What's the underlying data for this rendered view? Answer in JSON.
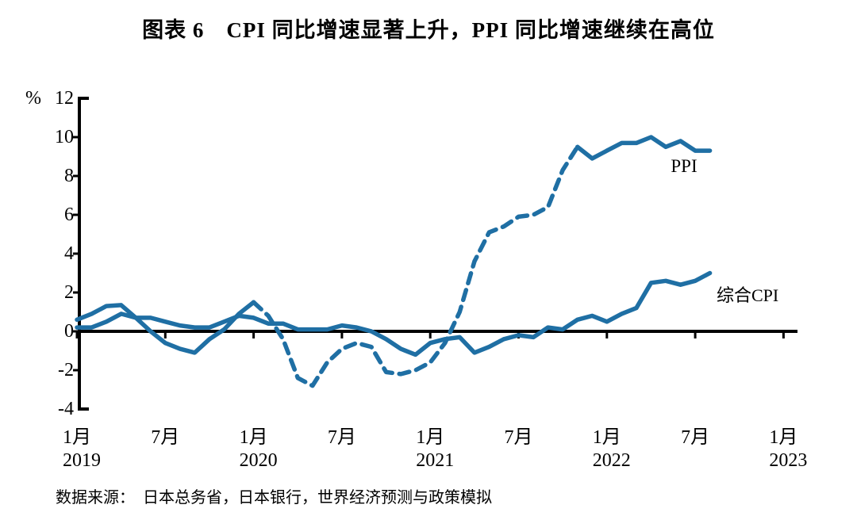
{
  "page": {
    "source": "数据来源：　日本总务省，日本银行，世界经济预测与政策模拟"
  },
  "chart_data": {
    "type": "line",
    "title": "图表 6　CPI 同比增速显著上升，PPI 同比增速继续在高位",
    "unit_label": "%",
    "ylim": [
      -4,
      12
    ],
    "yticks": [
      12,
      10,
      8,
      6,
      4,
      2,
      0,
      -2,
      -4
    ],
    "grid": false,
    "legend_position": "inline-labels",
    "x_monthly_from": "2019-01",
    "x_monthly_to": "2022-08",
    "x_ticks": [
      {
        "month": "1月",
        "year": "2019"
      },
      {
        "month": "7月"
      },
      {
        "month": "1月",
        "year": "2020"
      },
      {
        "month": "7月"
      },
      {
        "month": "1月",
        "year": "2021"
      },
      {
        "month": "7月"
      },
      {
        "month": "1月",
        "year": "2022"
      },
      {
        "month": "7月"
      },
      {
        "month": "1月",
        "year": "2023"
      }
    ],
    "line_color": "#1F6FA4",
    "series": [
      {
        "id": "ppi",
        "name": "PPI",
        "color": "#1F6FA4",
        "segments": [
          {
            "from": 0,
            "to": 12,
            "dashed": false
          },
          {
            "from": 12,
            "to": 34,
            "dashed": true
          },
          {
            "from": 34,
            "to": 43,
            "dashed": false
          }
        ],
        "values": [
          0.6,
          0.9,
          1.3,
          1.35,
          0.7,
          0.0,
          -0.6,
          -0.9,
          -1.1,
          -0.4,
          0.1,
          0.9,
          1.5,
          0.8,
          -0.4,
          -2.4,
          -2.8,
          -1.6,
          -0.9,
          -0.6,
          -0.8,
          -2.1,
          -2.2,
          -2.0,
          -1.6,
          -0.6,
          1.0,
          3.6,
          5.1,
          5.4,
          5.9,
          6.0,
          6.4,
          8.3,
          9.5,
          8.9,
          9.3,
          9.7,
          9.7,
          10.0,
          9.5,
          9.8,
          9.3,
          9.3
        ]
      },
      {
        "id": "composite-cpi",
        "name": "综合CPI",
        "color": "#1F6FA4",
        "segments": [
          {
            "from": 0,
            "to": 43,
            "dashed": false
          }
        ],
        "values": [
          0.2,
          0.2,
          0.5,
          0.9,
          0.7,
          0.7,
          0.5,
          0.3,
          0.2,
          0.2,
          0.5,
          0.8,
          0.7,
          0.4,
          0.4,
          0.1,
          0.1,
          0.1,
          0.3,
          0.2,
          0.0,
          -0.4,
          -0.9,
          -1.2,
          -0.6,
          -0.4,
          -0.3,
          -1.1,
          -0.8,
          -0.4,
          -0.2,
          -0.3,
          0.2,
          0.1,
          0.6,
          0.8,
          0.5,
          0.9,
          1.2,
          2.5,
          2.6,
          2.4,
          2.6,
          3.0
        ]
      }
    ]
  }
}
